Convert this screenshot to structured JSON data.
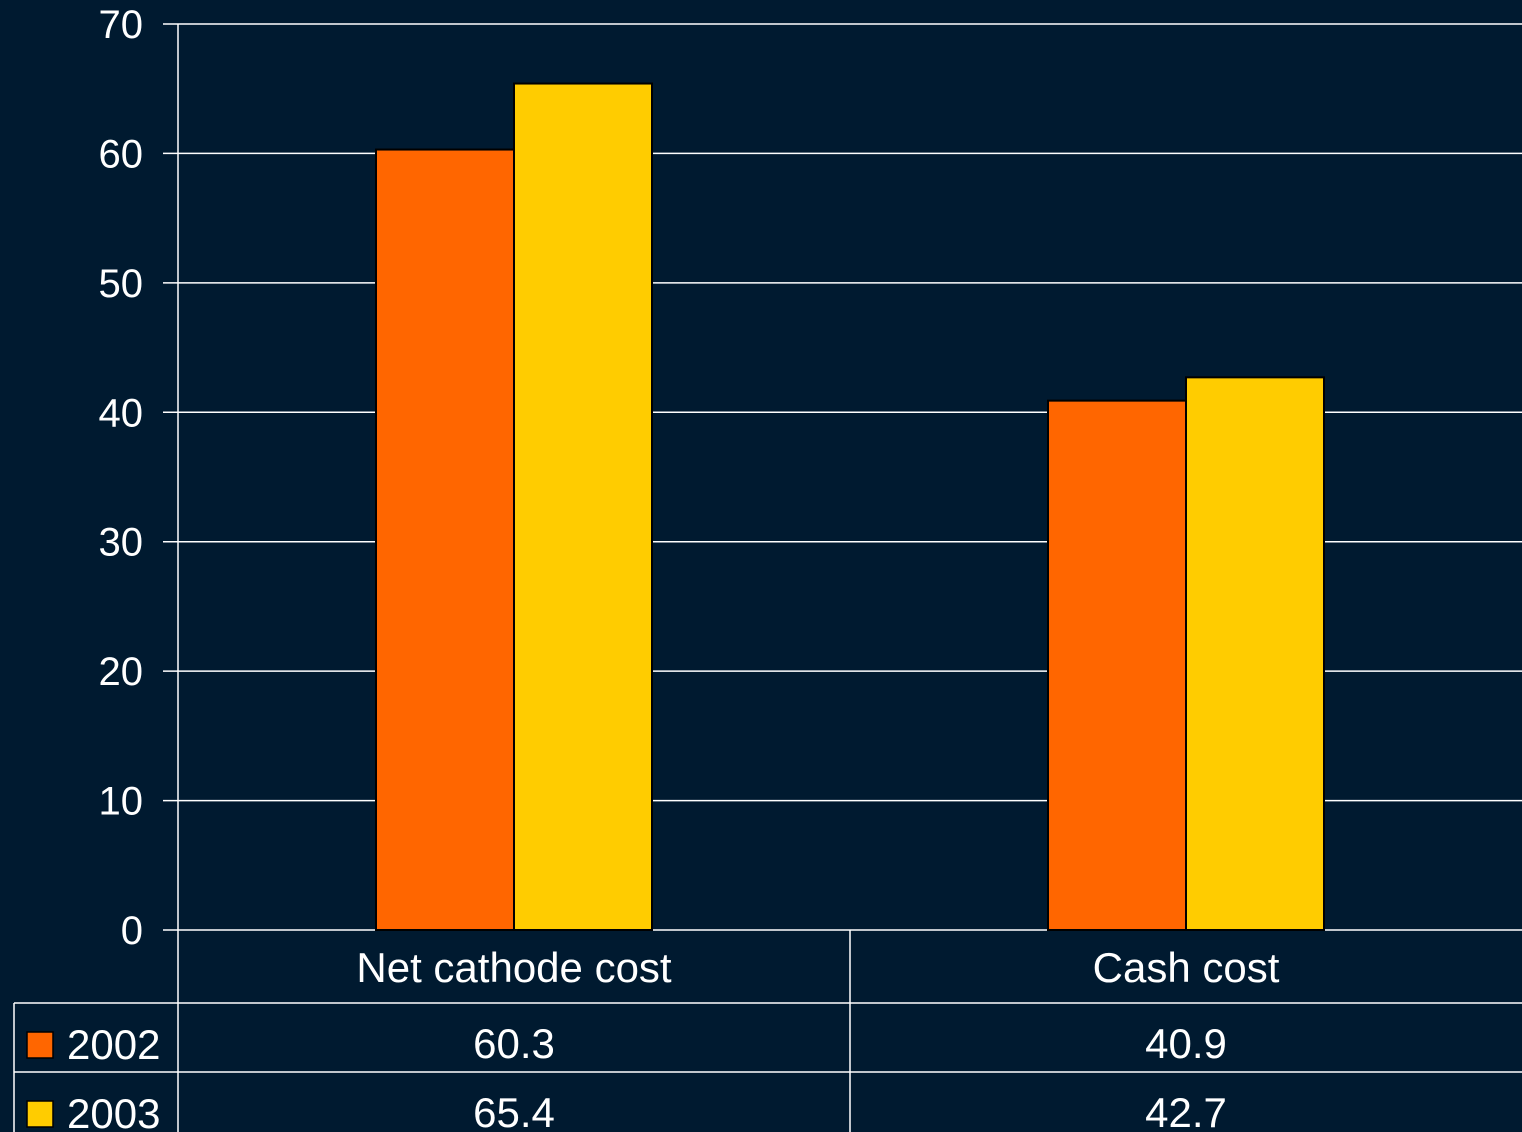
{
  "chart_data": {
    "type": "bar",
    "categories": [
      "Net cathode cost",
      "Cash cost"
    ],
    "series": [
      {
        "name": "2002",
        "values": [
          60.3,
          40.9
        ],
        "color": "#ff6600"
      },
      {
        "name": "2003",
        "values": [
          65.4,
          42.7
        ],
        "color": "#ffcc00"
      }
    ],
    "ylim": [
      0,
      70
    ],
    "yticks": [
      0,
      10,
      20,
      30,
      40,
      50,
      60,
      70
    ],
    "grid": true,
    "legend": "data-table",
    "data_table": {
      "rows": [
        {
          "series": "2002",
          "cells": [
            "60.3",
            "40.9"
          ]
        },
        {
          "series": "2003",
          "cells": [
            "65.4",
            "42.7"
          ]
        }
      ]
    }
  },
  "colors": {
    "background": "#001a30",
    "gridline": "#ffffff",
    "text": "#ffffff",
    "bar_outline": "#000000"
  }
}
